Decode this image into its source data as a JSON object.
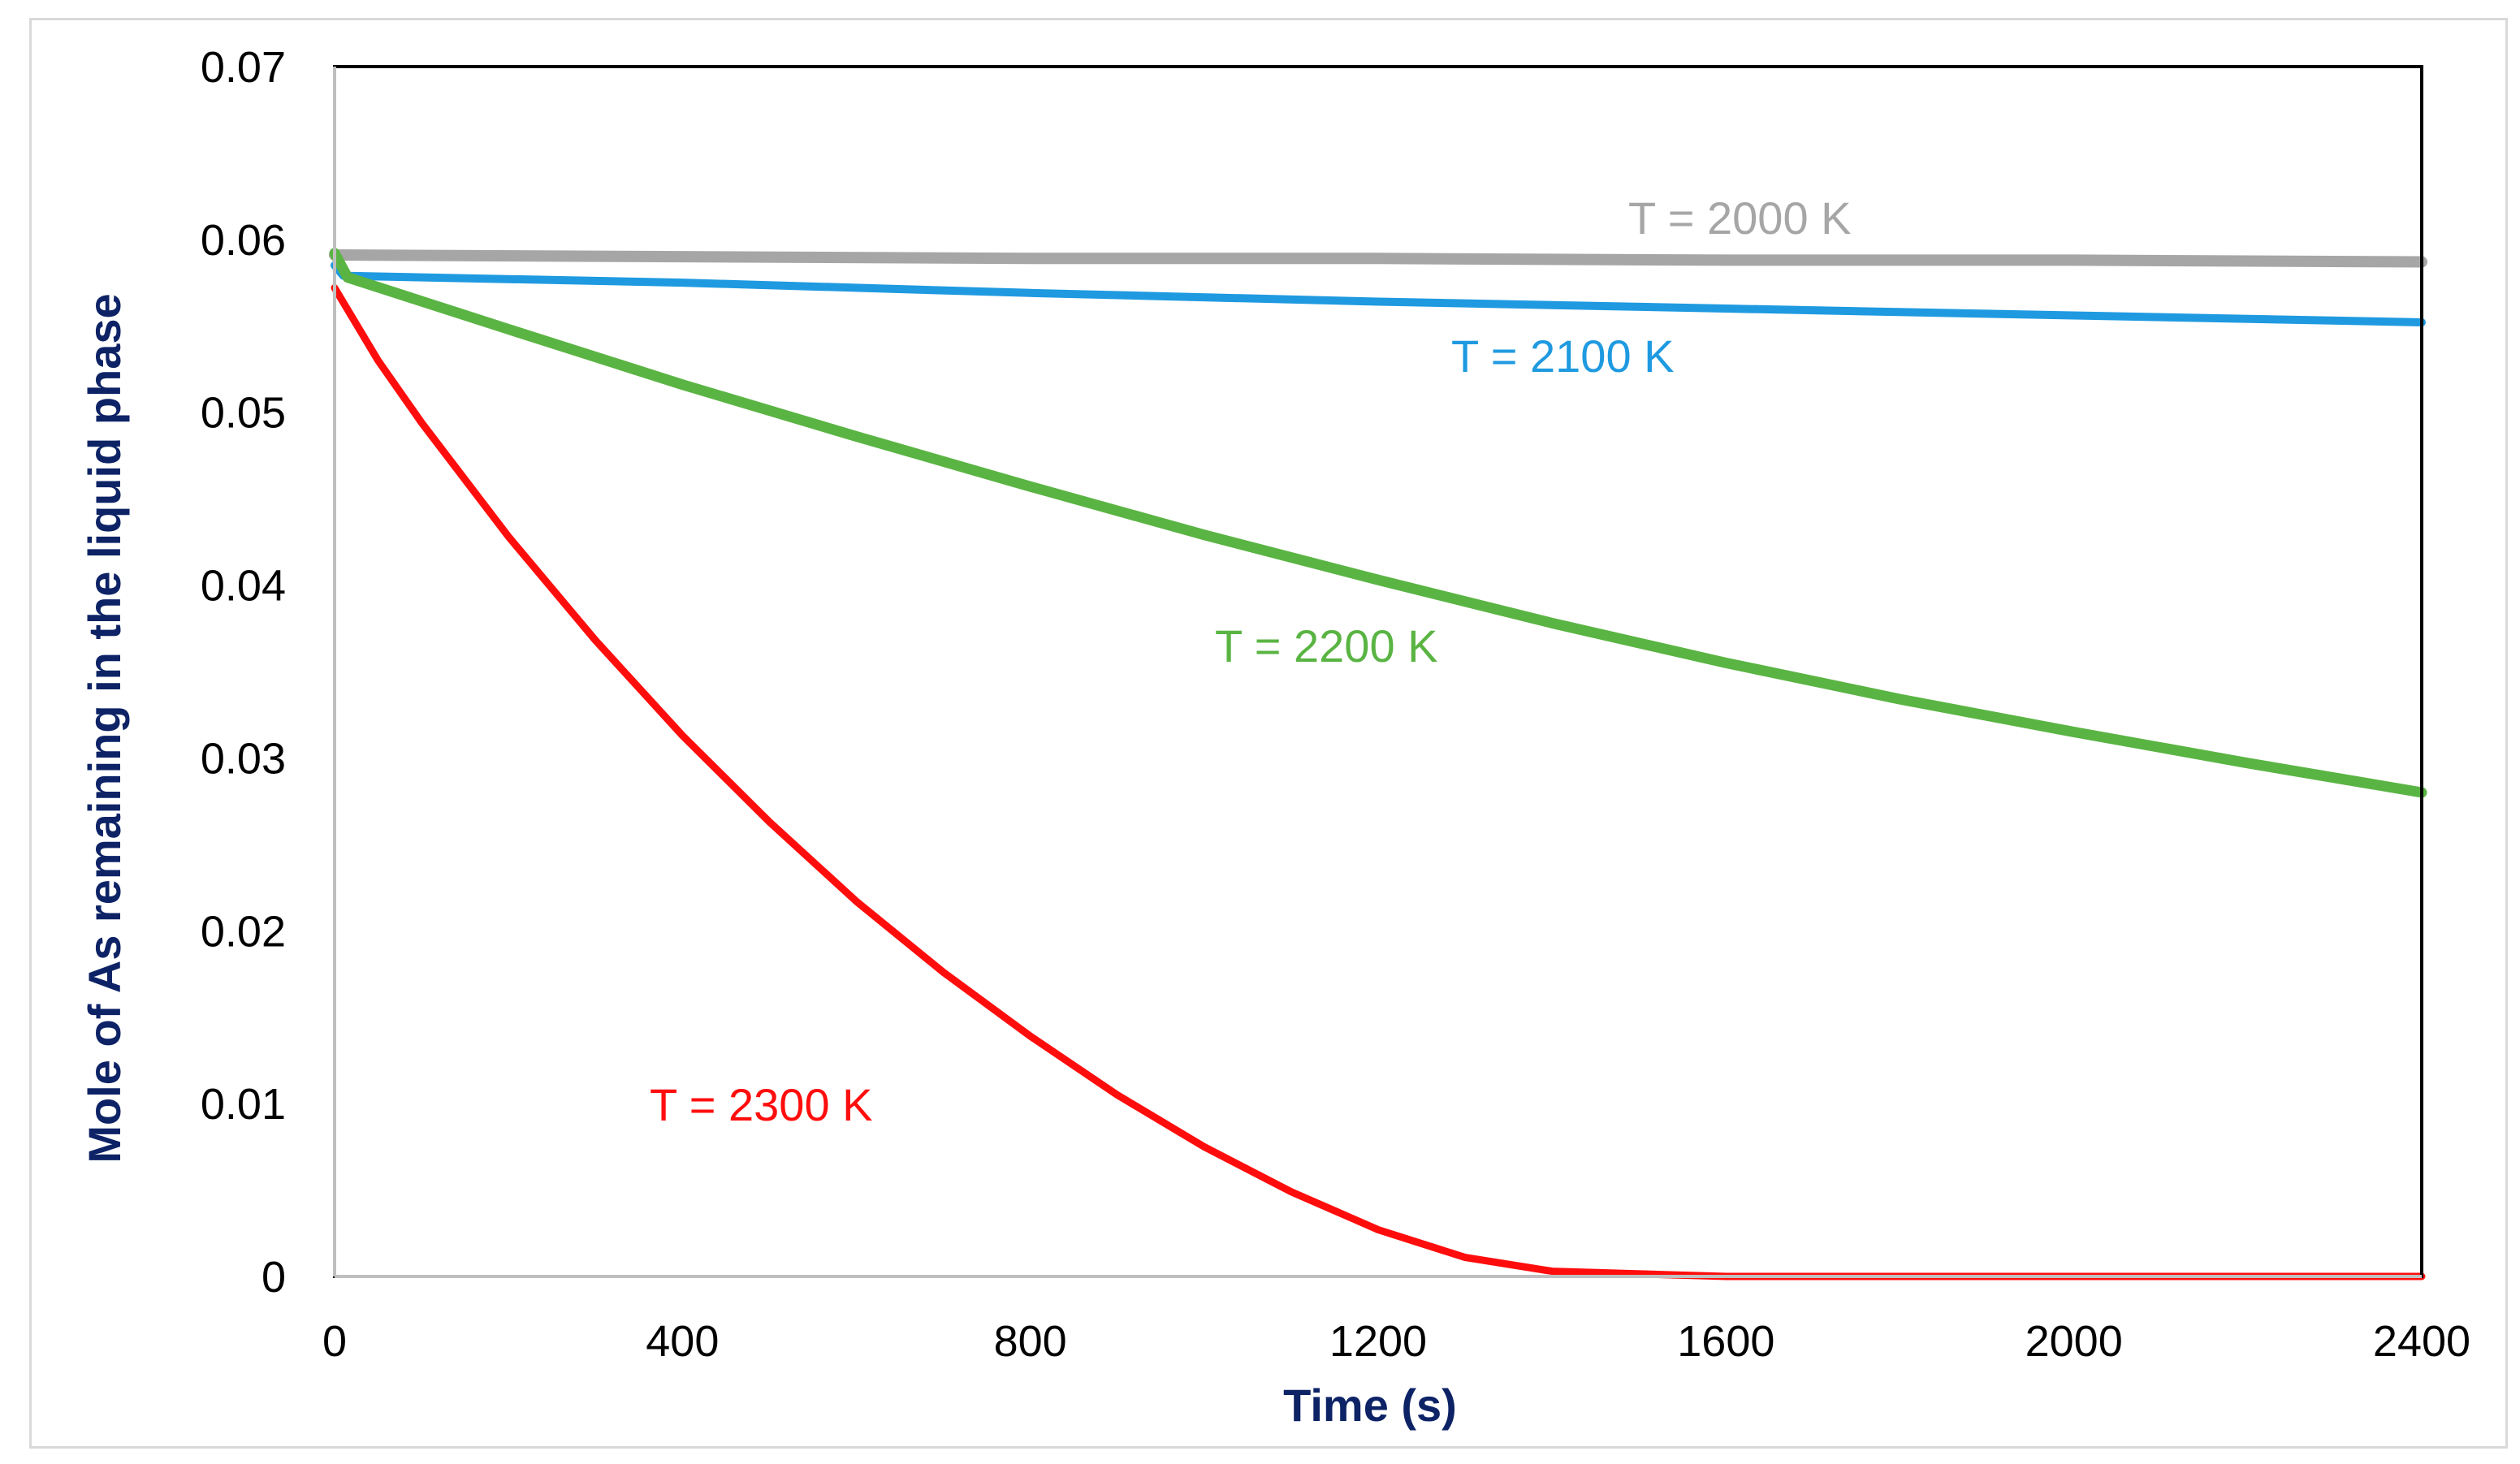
{
  "chart_data": {
    "type": "line",
    "title": "",
    "xlabel": "Time (s)",
    "ylabel": "Mole of As remaining in the liquid phase",
    "xlim": [
      0,
      2400
    ],
    "ylim": [
      0,
      0.07
    ],
    "xticks": [
      0,
      400,
      800,
      1200,
      1600,
      2000,
      2400
    ],
    "yticks": [
      0,
      0.01,
      0.02,
      0.03,
      0.04,
      0.05,
      0.06,
      0.07
    ],
    "xtick_labels": [
      "0",
      "400",
      "800",
      "1200",
      "1600",
      "2000",
      "2400"
    ],
    "ytick_labels": [
      "0",
      "0.01",
      "0.02",
      "0.03",
      "0.04",
      "0.05",
      "0.06",
      "0.07"
    ],
    "grid": false,
    "legend": "inline labels",
    "series": [
      {
        "name": "T = 2000  K",
        "color": "#a6a6a6",
        "x": [
          0,
          400,
          800,
          1200,
          1600,
          2000,
          2400
        ],
        "y": [
          0.0591,
          0.059,
          0.0589,
          0.0589,
          0.0588,
          0.0588,
          0.0587
        ]
      },
      {
        "name": "T = 2100 K",
        "color": "#1f9ae0",
        "x": [
          0,
          10,
          400,
          800,
          1200,
          1600,
          2000,
          2400
        ],
        "y": [
          0.0585,
          0.0579,
          0.0575,
          0.0569,
          0.0564,
          0.056,
          0.0556,
          0.0552
        ],
        "label_anchor": [
          1280,
          0.0535
        ]
      },
      {
        "name": "T = 2200 K",
        "color": "#5ab443",
        "x": [
          0,
          15,
          200,
          400,
          600,
          800,
          1000,
          1200,
          1400,
          1600,
          1800,
          2000,
          2200,
          2400
        ],
        "y": [
          0.0592,
          0.0578,
          0.0548,
          0.0516,
          0.0486,
          0.0457,
          0.0429,
          0.0403,
          0.0378,
          0.0355,
          0.0334,
          0.0315,
          0.0297,
          0.028
        ],
        "label_anchor": [
          1020,
          0.036
        ]
      },
      {
        "name": "T = 2300 K",
        "color": "#ff0d0d",
        "x": [
          0,
          50,
          100,
          200,
          300,
          400,
          500,
          600,
          700,
          800,
          900,
          1000,
          1100,
          1200,
          1300,
          1400,
          1600,
          1800,
          2000,
          2200,
          2400
        ],
        "y": [
          0.0572,
          0.053,
          0.0494,
          0.0428,
          0.0368,
          0.0313,
          0.0263,
          0.0217,
          0.0176,
          0.0139,
          0.0105,
          0.0075,
          0.0049,
          0.0027,
          0.0011,
          0.0003,
          0.0,
          0.0,
          0.0,
          0.0,
          0.0
        ],
        "label_anchor": [
          520,
          0.0092
        ]
      }
    ]
  }
}
